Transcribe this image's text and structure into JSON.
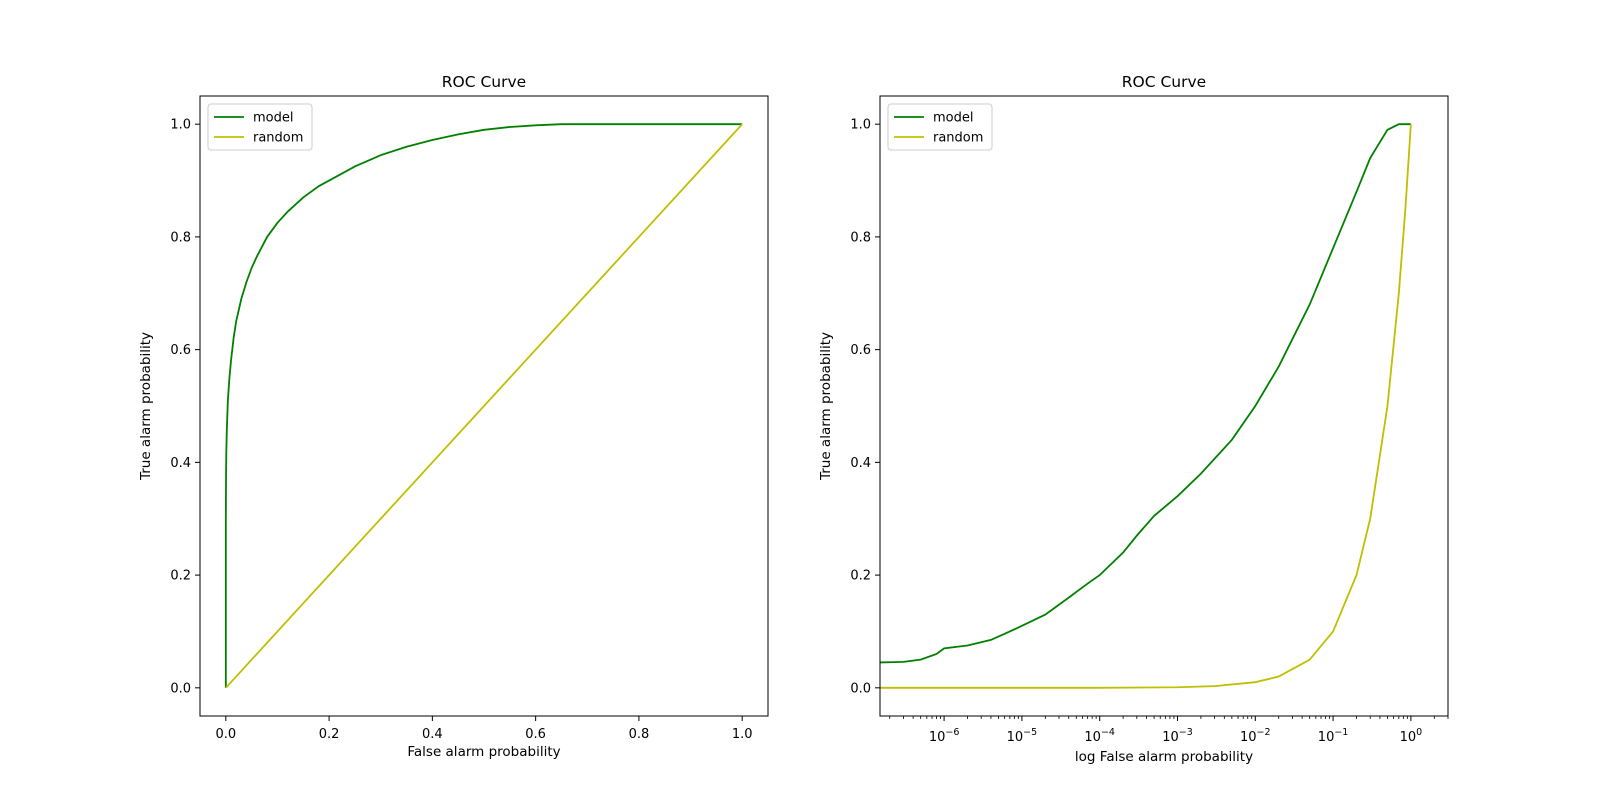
{
  "chart_data": [
    {
      "type": "line",
      "title": "ROC Curve",
      "xlabel": "False alarm probability",
      "ylabel": "True alarm probability",
      "xscale": "linear",
      "xlim": [
        -0.05,
        1.05
      ],
      "ylim": [
        -0.05,
        1.05
      ],
      "xticks": [
        0.0,
        0.2,
        0.4,
        0.6,
        0.8,
        1.0
      ],
      "xtick_labels": [
        "0.0",
        "0.2",
        "0.4",
        "0.6",
        "0.8",
        "1.0"
      ],
      "yticks": [
        0.0,
        0.2,
        0.4,
        0.6,
        0.8,
        1.0
      ],
      "ytick_labels": [
        "0.0",
        "0.2",
        "0.4",
        "0.6",
        "0.8",
        "1.0"
      ],
      "grid": false,
      "legend": "upper left",
      "series": [
        {
          "name": "model",
          "color": "#008000",
          "x": [
            0.0,
            0.0,
            0.0005,
            0.001,
            0.002,
            0.004,
            0.007,
            0.01,
            0.015,
            0.02,
            0.03,
            0.04,
            0.05,
            0.06,
            0.08,
            0.1,
            0.12,
            0.15,
            0.18,
            0.2,
            0.25,
            0.3,
            0.35,
            0.4,
            0.45,
            0.5,
            0.55,
            0.6,
            0.65,
            0.7,
            0.8,
            0.9,
            1.0
          ],
          "y": [
            0.0,
            0.3,
            0.38,
            0.42,
            0.46,
            0.51,
            0.55,
            0.58,
            0.62,
            0.65,
            0.69,
            0.72,
            0.745,
            0.765,
            0.8,
            0.825,
            0.845,
            0.87,
            0.89,
            0.9,
            0.925,
            0.945,
            0.96,
            0.972,
            0.982,
            0.99,
            0.995,
            0.998,
            1.0,
            1.0,
            1.0,
            1.0,
            1.0
          ]
        },
        {
          "name": "random",
          "color": "#bfbf00",
          "x": [
            0.0,
            1.0
          ],
          "y": [
            0.0,
            1.0
          ]
        }
      ]
    },
    {
      "type": "line",
      "title": "ROC Curve",
      "xlabel": "log False alarm probability",
      "ylabel": "True alarm probability",
      "xscale": "log",
      "xlim": [
        1.5e-07,
        3
      ],
      "ylim": [
        -0.05,
        1.05
      ],
      "xticks": [
        1e-06,
        1e-05,
        0.0001,
        0.001,
        0.01,
        0.1,
        1
      ],
      "xtick_labels": [
        {
          "base": "10",
          "exp": "−6"
        },
        {
          "base": "10",
          "exp": "−5"
        },
        {
          "base": "10",
          "exp": "−4"
        },
        {
          "base": "10",
          "exp": "−3"
        },
        {
          "base": "10",
          "exp": "−2"
        },
        {
          "base": "10",
          "exp": "−1"
        },
        {
          "base": "10",
          "exp": "0"
        }
      ],
      "yticks": [
        0.0,
        0.2,
        0.4,
        0.6,
        0.8,
        1.0
      ],
      "ytick_labels": [
        "0.0",
        "0.2",
        "0.4",
        "0.6",
        "0.8",
        "1.0"
      ],
      "grid": false,
      "legend": "upper left",
      "series": [
        {
          "name": "model",
          "color": "#008000",
          "x": [
            1.5e-07,
            3e-07,
            5e-07,
            8e-07,
            1e-06,
            2e-06,
            4e-06,
            7e-06,
            1e-05,
            2e-05,
            4e-05,
            7e-05,
            0.0001,
            0.0002,
            0.0003,
            0.0005,
            0.001,
            0.002,
            0.005,
            0.01,
            0.02,
            0.05,
            0.1,
            0.2,
            0.3,
            0.5,
            0.7,
            1.0
          ],
          "y": [
            0.045,
            0.046,
            0.05,
            0.06,
            0.07,
            0.075,
            0.085,
            0.1,
            0.11,
            0.13,
            0.16,
            0.185,
            0.2,
            0.24,
            0.27,
            0.305,
            0.34,
            0.38,
            0.44,
            0.5,
            0.57,
            0.68,
            0.78,
            0.88,
            0.94,
            0.99,
            1.0,
            1.0
          ]
        },
        {
          "name": "random",
          "color": "#bfbf00",
          "x": [
            1.5e-07,
            1e-06,
            1e-05,
            0.0001,
            0.001,
            0.003,
            0.01,
            0.02,
            0.05,
            0.1,
            0.2,
            0.3,
            0.5,
            0.7,
            0.85,
            1.0
          ],
          "y": [
            0.0,
            0.0,
            0.0,
            0.0,
            0.001,
            0.003,
            0.01,
            0.02,
            0.05,
            0.1,
            0.2,
            0.3,
            0.5,
            0.7,
            0.85,
            1.0
          ]
        }
      ]
    }
  ]
}
